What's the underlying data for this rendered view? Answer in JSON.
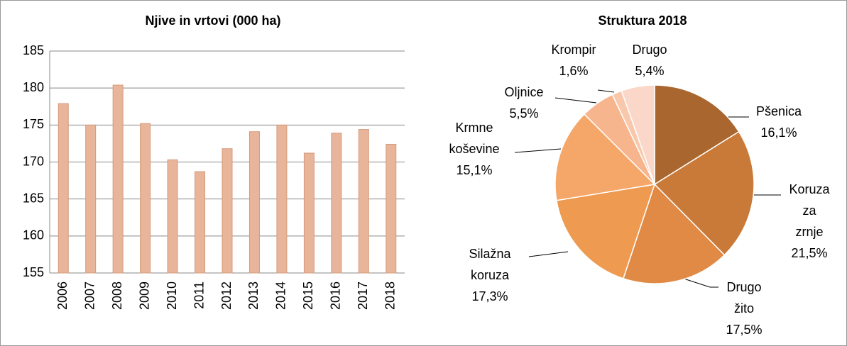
{
  "chart_data": [
    {
      "type": "bar",
      "title": "Njive in vrtovi (000 ha)",
      "categories": [
        "2006",
        "2007",
        "2008",
        "2009",
        "2010",
        "2011",
        "2012",
        "2013",
        "2014",
        "2015",
        "2016",
        "2017",
        "2018"
      ],
      "values": [
        177.9,
        175.0,
        180.4,
        175.2,
        170.3,
        168.7,
        171.8,
        174.1,
        175.0,
        171.2,
        173.9,
        174.4,
        172.4
      ],
      "color": "#e8b59a",
      "ylim": [
        155,
        185
      ],
      "yticks": [
        155,
        160,
        165,
        170,
        175,
        180,
        185
      ],
      "grid": true
    },
    {
      "type": "pie",
      "title": "Struktura 2018",
      "categories": [
        "Pšenica",
        "Koruza\nza zrnje",
        "Drugo\nžito",
        "Silažna\nkoruza",
        "Krmne\nkoševine",
        "Oljnice",
        "Krompir",
        "Drugo"
      ],
      "values": [
        16.1,
        21.5,
        17.5,
        17.3,
        15.1,
        5.5,
        1.6,
        5.4
      ],
      "value_labels": [
        "16,1%",
        "21,5%",
        "17,5%",
        "17,3%",
        "15,1%",
        "5,5%",
        "1,6%",
        "5,4%"
      ],
      "colors": [
        "#a9672f",
        "#c97a38",
        "#e08a45",
        "#ee9a50",
        "#f4a768",
        "#f6b58c",
        "#f8c8ad",
        "#fad7c8"
      ]
    }
  ]
}
